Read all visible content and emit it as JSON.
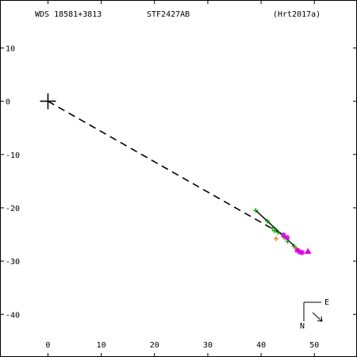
{
  "header": {
    "wds_id": "WDS 18581+3813",
    "discoverer": "STF2427AB",
    "reference": "(Hrt2017a)"
  },
  "orientation": {
    "east_label": "E",
    "north_label": "N"
  },
  "colors": {
    "axis": "#000000",
    "green": "#00a000",
    "magenta": "#e000e0",
    "orange": "#e08000",
    "line": "#000000"
  },
  "chart_data": {
    "type": "scatter",
    "title": "",
    "xlabel": "",
    "ylabel": "",
    "xlim": [
      -9,
      58
    ],
    "ylim": [
      -48,
      19
    ],
    "x_ticks": [
      0,
      10,
      20,
      30,
      40,
      50
    ],
    "x_tick_labels": [
      "0",
      "10",
      "20",
      "30",
      "40",
      "50"
    ],
    "y_ticks": [
      10,
      0,
      -10,
      -20,
      -30,
      -40
    ],
    "y_tick_labels": [
      "10",
      "0",
      "-10",
      "-20",
      "-30",
      "-40"
    ],
    "grid": false,
    "primary_position": [
      0,
      0
    ],
    "dashed_line": {
      "from": [
        0,
        0
      ],
      "to": [
        44,
        -25
      ]
    },
    "solid_line": {
      "from": [
        39,
        -20.5
      ],
      "to": [
        47.7,
        -28.5
      ]
    },
    "series": [
      {
        "marker": "plus",
        "color": "green",
        "points": [
          [
            39,
            -20.5
          ],
          [
            41.2,
            -22.5
          ],
          [
            42.1,
            -23.8
          ],
          [
            42.5,
            -24.3
          ],
          [
            43.2,
            -24.6
          ],
          [
            44.3,
            -25.5
          ],
          [
            45,
            -26.3
          ],
          [
            46.2,
            -27.2
          ]
        ]
      },
      {
        "marker": "plus",
        "color": "orange",
        "points": [
          [
            42.8,
            -25.8
          ],
          [
            46.5,
            -27.6
          ]
        ]
      },
      {
        "marker": "asterisk",
        "color": "magenta",
        "points": [
          [
            44.2,
            -25.1
          ],
          [
            44.9,
            -25.6
          ],
          [
            46.8,
            -28
          ],
          [
            47.3,
            -28.3
          ],
          [
            47.7,
            -28.4
          ]
        ]
      },
      {
        "marker": "triangle",
        "color": "magenta",
        "points": [
          [
            48.8,
            -28.2
          ]
        ]
      }
    ]
  }
}
